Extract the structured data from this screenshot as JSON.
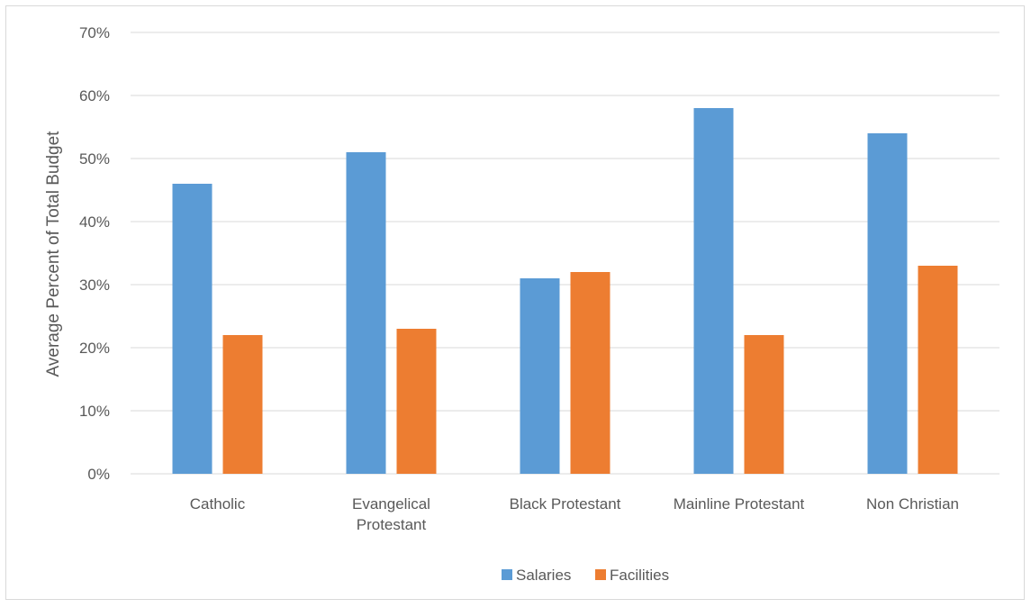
{
  "chart_data": {
    "type": "bar",
    "categories": [
      [
        "Catholic"
      ],
      [
        "Evangelical",
        "Protestant"
      ],
      [
        "Black  Protestant"
      ],
      [
        "Mainline Protestant"
      ],
      [
        "Non Christian"
      ]
    ],
    "series": [
      {
        "name": "Salaries",
        "color": "#5b9bd5",
        "values": [
          46,
          51,
          31,
          58,
          54
        ]
      },
      {
        "name": "Facilities",
        "color": "#ed7d31",
        "values": [
          22,
          23,
          32,
          22,
          33
        ]
      }
    ],
    "ylabel": "Average Percent of Total Budget",
    "ylim": [
      0,
      70
    ],
    "yticks": [
      0,
      10,
      20,
      30,
      40,
      50,
      60,
      70
    ],
    "ytick_suffix": "%",
    "grid": true,
    "gridColor": "#d9d9d9",
    "legend": "bottom-center"
  }
}
